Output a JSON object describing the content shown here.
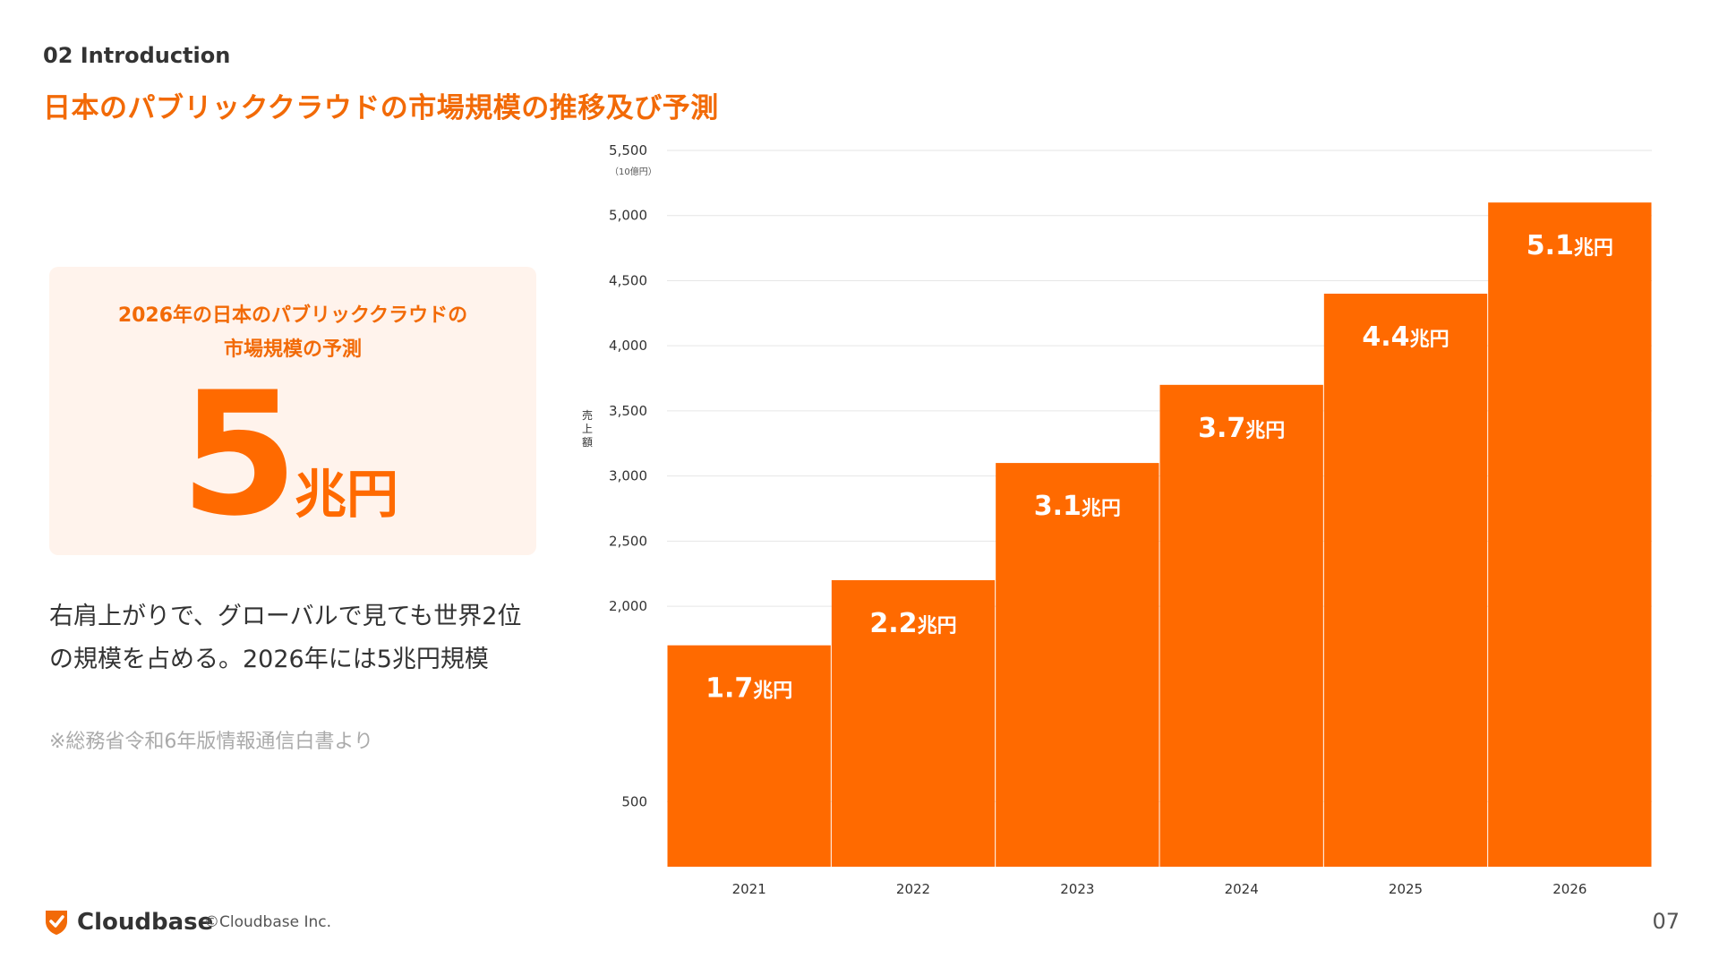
{
  "header": {
    "section_label": "02 Introduction",
    "title": "日本のパブリッククラウドの市場規模の推移及び予測"
  },
  "highlight": {
    "caption_line1": "2026年の日本のパブリッククラウドの",
    "caption_line2": "市場規模の予測",
    "big_number": "5",
    "big_unit": "兆円"
  },
  "body": {
    "line1": "右肩上がりで、グローバルで見ても世界2位",
    "line2": "の規模を占める。2026年には5兆円規模",
    "source_note": "※総務省令和6年版情報通信白書より"
  },
  "colors": {
    "accent": "#f26a07",
    "bar": "#ff6a00",
    "card_bg": "#fff3ec"
  },
  "chart_data": {
    "type": "bar",
    "categories": [
      "2021",
      "2022",
      "2023",
      "2024",
      "2025",
      "2026"
    ],
    "values": [
      1700,
      2200,
      3100,
      3700,
      4400,
      5100
    ],
    "data_labels": [
      {
        "num": "1.7",
        "unit": "兆円"
      },
      {
        "num": "2.2",
        "unit": "兆円"
      },
      {
        "num": "3.1",
        "unit": "兆円"
      },
      {
        "num": "3.7",
        "unit": "兆円"
      },
      {
        "num": "4.4",
        "unit": "兆円"
      },
      {
        "num": "5.1",
        "unit": "兆円"
      }
    ],
    "y_ticks": [
      "5,500",
      "5,000",
      "4,500",
      "4,000",
      "3,500",
      "3,000",
      "2,500",
      "2,000",
      "500"
    ],
    "y_unit": "（10億円）",
    "ylabel": "売上額",
    "xlabel": "",
    "grid": true
  },
  "footer": {
    "brand": "Cloudbase",
    "copyright": "©Cloudbase Inc.",
    "page_number": "07"
  }
}
